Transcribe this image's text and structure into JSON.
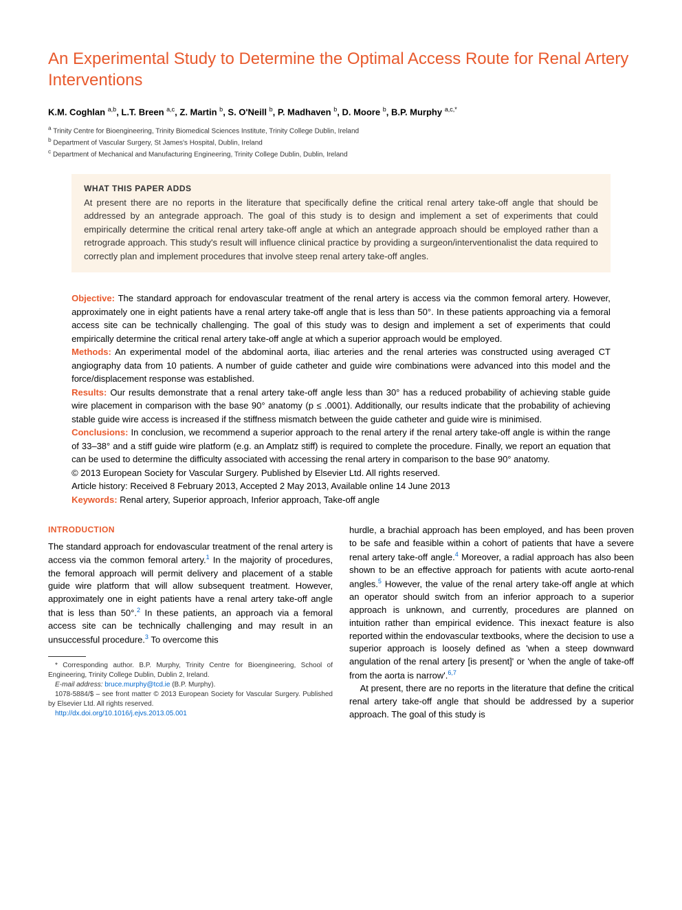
{
  "title": "An Experimental Study to Determine the Optimal Access Route for Renal Artery Interventions",
  "authors_html": "K.M. Coghlan <sup>a,b</sup>, L.T. Breen <sup>a,c</sup>, Z. Martin <sup>b</sup>, S. O'Neill <sup>b</sup>, P. Madhaven <sup>b</sup>, D. Moore <sup>b</sup>, B.P. Murphy <sup>a,c,*</sup>",
  "affiliations": {
    "a": "Trinity Centre for Bioengineering, Trinity Biomedical Sciences Institute, Trinity College Dublin, Ireland",
    "b": "Department of Vascular Surgery, St James's Hospital, Dublin, Ireland",
    "c": "Department of Mechanical and Manufacturing Engineering, Trinity College Dublin, Dublin, Ireland"
  },
  "highlight": {
    "title": "WHAT THIS PAPER ADDS",
    "body": "At present there are no reports in the literature that specifically define the critical renal artery take-off angle that should be addressed by an antegrade approach. The goal of this study is to design and implement a set of experiments that could empirically determine the critical renal artery take-off angle at which an antegrade approach should be employed rather than a retrograde approach. This study's result will influence clinical practice by providing a surgeon/interventionalist the data required to correctly plan and implement procedures that involve steep renal artery take-off angles."
  },
  "abstract": {
    "objective_label": "Objective:",
    "objective": " The standard approach for endovascular treatment of the renal artery is access via the common femoral artery. However, approximately one in eight patients have a renal artery take-off angle that is less than 50°. In these patients approaching via a femoral access site can be technically challenging. The goal of this study was to design and implement a set of experiments that could empirically determine the critical renal artery take-off angle at which a superior approach would be employed.",
    "methods_label": "Methods:",
    "methods": " An experimental model of the abdominal aorta, iliac arteries and the renal arteries was constructed using averaged CT angiography data from 10 patients. A number of guide catheter and guide wire combinations were advanced into this model and the force/displacement response was established.",
    "results_label": "Results:",
    "results": " Our results demonstrate that a renal artery take-off angle less than 30° has a reduced probability of achieving stable guide wire placement in comparison with the base 90° anatomy (p ≤ .0001). Additionally, our results indicate that the probability of achieving stable guide wire access is increased if the stiffness mismatch between the guide catheter and guide wire is minimised.",
    "conclusions_label": "Conclusions:",
    "conclusions": " In conclusion, we recommend a superior approach to the renal artery if the renal artery take-off angle is within the range of 33–38° and a stiff guide wire platform (e.g. an Amplatz stiff) is required to complete the procedure. Finally, we report an equation that can be used to determine the difficulty associated with accessing the renal artery in comparison to the base 90° anatomy.",
    "copyright": "© 2013 European Society for Vascular Surgery. Published by Elsevier Ltd. All rights reserved.",
    "history": "Article history: Received 8 February 2013, Accepted 2 May 2013, Available online 14 June 2013",
    "keywords_label": "Keywords:",
    "keywords": " Renal artery, Superior approach, Inferior approach, Take-off angle"
  },
  "intro_heading": "INTRODUCTION",
  "col1_para1_parts": {
    "a": "The standard approach for endovascular treatment of the renal artery is access via the common femoral artery.",
    "ref1": "1",
    "b": " In the majority of procedures, the femoral approach will permit delivery and placement of a stable guide wire platform that will allow subsequent treatment. However, approximately one in eight patients have a renal artery take-off angle that is less than 50°.",
    "ref2": "2",
    "c": " In these patients, an approach via a femoral access site can be technically challenging and may result in an unsuccessful procedure.",
    "ref3": "3",
    "d": " To overcome this"
  },
  "col2_para1_parts": {
    "a": "hurdle, a brachial approach has been employed, and has been proven to be safe and feasible within a cohort of patients that have a severe renal artery take-off angle.",
    "ref4": "4",
    "b": " Moreover, a radial approach has also been shown to be an effective approach for patients with acute aorto-renal angles.",
    "ref5": "5",
    "c": " However, the value of the renal artery take-off angle at which an operator should switch from an inferior approach to a superior approach is unknown, and currently, procedures are planned on intuition rather than empirical evidence. This inexact feature is also reported within the endovascular textbooks, where the decision to use a superior approach is loosely defined as 'when a steep downward angulation of the renal artery [is present]' or 'when the angle of take-off from the aorta is narrow'.",
    "ref67": "6,7"
  },
  "col2_para2": "At present, there are no reports in the literature that define the critical renal artery take-off angle that should be addressed by a superior approach. The goal of this study is",
  "footnotes": {
    "corr": "* Corresponding author. B.P. Murphy, Trinity Centre for Bioengineering, School of Engineering, Trinity College Dublin, Dublin 2, Ireland.",
    "email_label": "E-mail address:",
    "email": "bruce.murphy@tcd.ie",
    "email_paren": " (B.P. Murphy).",
    "issn": "1078-5884/$ – see front matter © 2013 European Society for Vascular Surgery. Published by Elsevier Ltd. All rights reserved.",
    "doi": "http://dx.doi.org/10.1016/j.ejvs.2013.05.001"
  }
}
